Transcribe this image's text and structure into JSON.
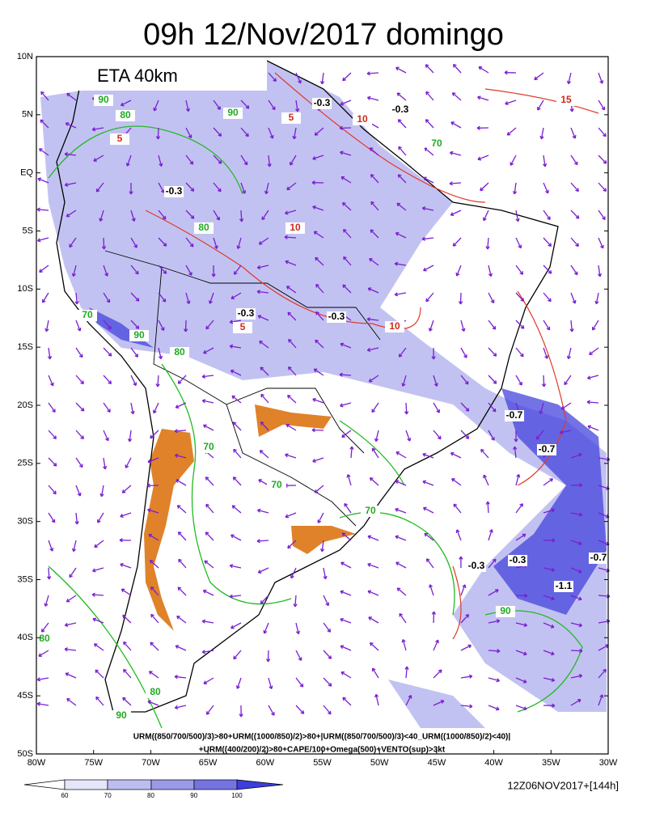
{
  "header": {
    "title": "09h 12/Nov/2017 domingo",
    "model": "ETA 40km"
  },
  "axes": {
    "lat_labels": [
      "10N",
      "5N",
      "EQ",
      "5S",
      "10S",
      "15S",
      "20S",
      "25S",
      "30S",
      "35S",
      "40S",
      "45S",
      "50S"
    ],
    "lon_labels": [
      "80W",
      "75W",
      "70W",
      "65W",
      "60W",
      "55W",
      "50W",
      "45W",
      "40W",
      "35W",
      "30W"
    ]
  },
  "contour_labels": [
    "90",
    "80",
    "90",
    "5",
    "-0.3",
    "-0.3",
    "10",
    "15",
    "5",
    "70",
    "80",
    "10",
    "-0.3",
    "-0.3",
    "10",
    "-0.3",
    "70",
    "80",
    "90",
    "5",
    "-0.7",
    "-0.7",
    "70",
    "70",
    "70",
    "-0.3",
    "-0.3",
    "-0.7",
    "-1.1",
    "90",
    "80",
    "90",
    "80"
  ],
  "formula": [
    "URM((850/700/500)/3)>80+URM((1000/850)/2)>80+|URM((850/700/500)/3)<40_URM((1000/850)/2)<40)|",
    "+URM((400/200)/2)>80+CAPE/100+Omega(500)+VENTO(sup)>3kt"
  ],
  "colorbar": {
    "labels": [
      "60",
      "70",
      "80",
      "90",
      "100"
    ]
  },
  "footer": "12Z06NOV2017+[144h]"
}
